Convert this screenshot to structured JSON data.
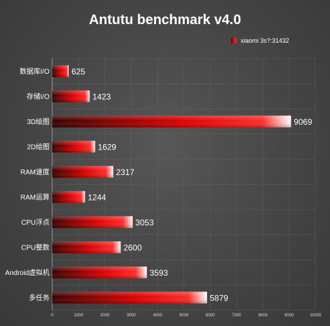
{
  "chart_data": {
    "type": "bar",
    "orientation": "horizontal",
    "title": "Antutu benchmark v4.0",
    "legend": {
      "label": "xiaomi 3s?:31432",
      "placement": "top-right"
    },
    "categories": [
      "数据库I/O",
      "存储I/O",
      "3D绘图",
      "2D绘图",
      "RAM速度",
      "RAM运算",
      "CPU浮点",
      "CPU整数",
      "Android虚拟机",
      "多任务"
    ],
    "values": [
      625,
      1423,
      9069,
      1629,
      2317,
      1244,
      3053,
      2600,
      3593,
      5879
    ],
    "value_labels": [
      "625",
      "1423",
      "9069",
      "1629",
      "2317",
      "1244",
      "3053",
      "2600",
      "3593",
      "5879"
    ],
    "xlim": [
      0,
      10000
    ],
    "x_ticks": [
      0,
      1000,
      2000,
      3000,
      4000,
      5000,
      6000,
      7000,
      8000,
      9000,
      10000
    ],
    "x_tick_labels": [
      "0",
      "1000",
      "2000",
      "3000",
      "4000",
      "5000",
      "6000",
      "7000",
      "8000",
      "9000",
      "10000"
    ],
    "grid": true,
    "colors": {
      "bar_dark": "#3a0000",
      "bar_mid": "#e00000",
      "bar_light": "#ff2020",
      "bar_tip": "#ffffff"
    }
  }
}
